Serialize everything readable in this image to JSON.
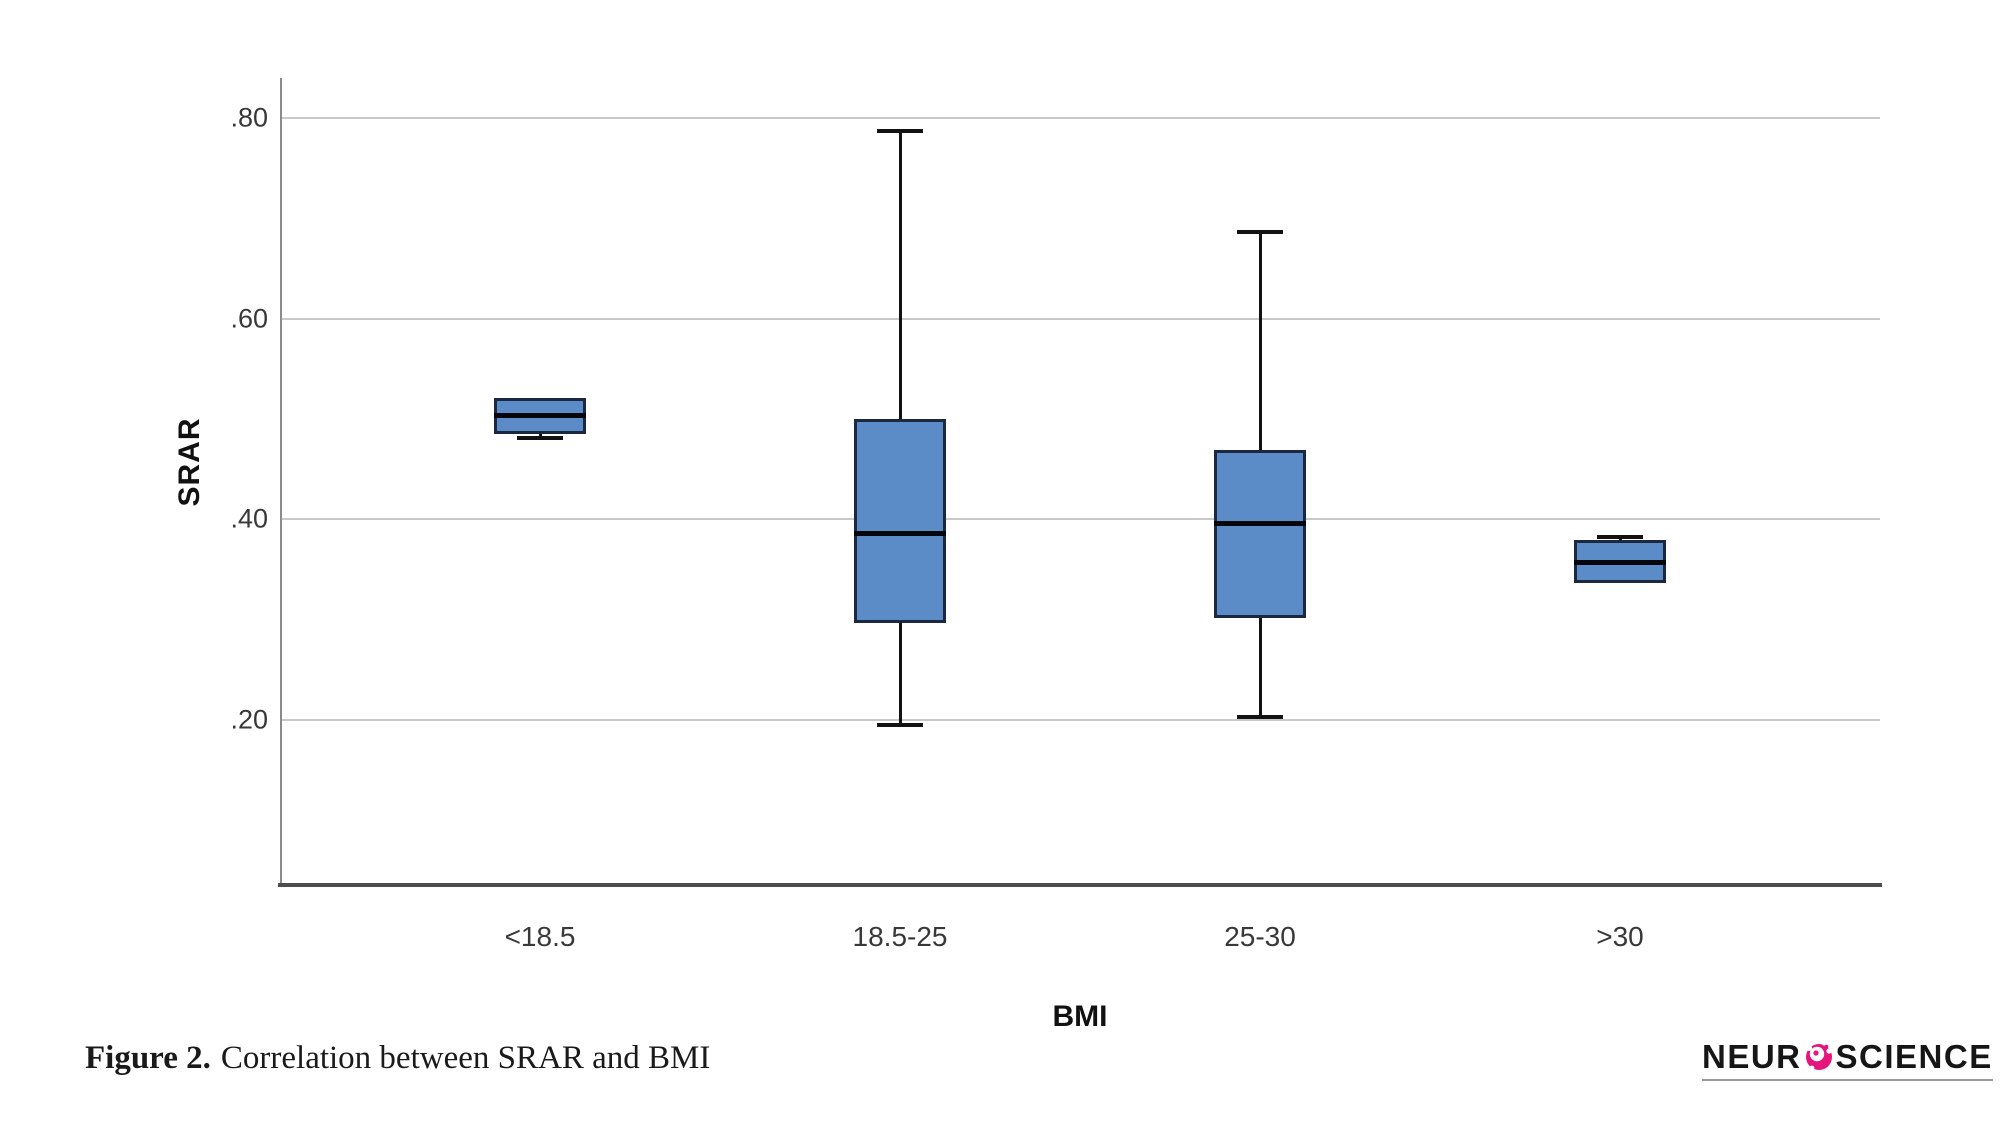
{
  "chart_data": {
    "type": "boxplot",
    "title": "",
    "xlabel": "BMI",
    "ylabel": "SRAR",
    "categories": [
      "<18.5",
      "18.5-25",
      "25-30",
      ">30"
    ],
    "ytick_labels": [
      ".80",
      ".60",
      ".40",
      ".20"
    ],
    "ytick_values": [
      0.8,
      0.6,
      0.4,
      0.2
    ],
    "ylim": [
      0.036,
      0.84
    ],
    "grid": "horizontal-only",
    "legend": "none",
    "boxes": [
      {
        "category": "<18.5",
        "q1": 0.484,
        "median": 0.503,
        "q3": 0.52,
        "whisker_low": 0.48,
        "whisker_high": null
      },
      {
        "category": "18.5-25",
        "q1": 0.296,
        "median": 0.385,
        "q3": 0.499,
        "whisker_low": 0.194,
        "whisker_high": 0.786
      },
      {
        "category": "25-30",
        "q1": 0.301,
        "median": 0.395,
        "q3": 0.468,
        "whisker_low": 0.202,
        "whisker_high": 0.685
      },
      {
        "category": ">30",
        "q1": 0.336,
        "median": 0.356,
        "q3": 0.378,
        "whisker_low": null,
        "whisker_high": 0.381
      }
    ],
    "colors": {
      "box_fill": "#5b8cc8",
      "box_border": "#1c2840",
      "median_line": "#06070d",
      "whisker": "#121212",
      "gridline": "#c9c9c9",
      "y_axis_line": "#8a8a8a",
      "x_axis_line": "#4d4d4d"
    }
  },
  "caption": {
    "label": "Figure 2.",
    "text": "Correlation between SRAR and BMI"
  },
  "logo": {
    "prefix": "NEUR",
    "suffix": "SCIENCE",
    "icon": "cell-icon",
    "accent_color": "#e5157e"
  }
}
